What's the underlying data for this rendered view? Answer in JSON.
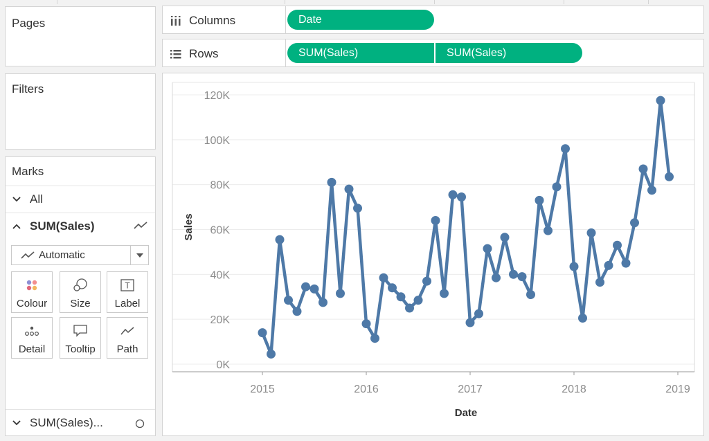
{
  "colors": {
    "pill": "#00b180",
    "line": "#4e79a7",
    "grid": "#ececec",
    "border": "#d4d4d4"
  },
  "pages": {
    "title": "Pages"
  },
  "filters": {
    "title": "Filters"
  },
  "shelves": {
    "columns": {
      "label": "Columns",
      "icon": "columns-icon",
      "pills": [
        "Date"
      ]
    },
    "rows": {
      "label": "Rows",
      "icon": "rows-icon",
      "pills": [
        "SUM(Sales)",
        "SUM(Sales)"
      ]
    }
  },
  "marks": {
    "title": "Marks",
    "all_label": "All",
    "sum_sales_label": "SUM(Sales)",
    "mark_type": "Automatic",
    "buttons": {
      "colour": "Colour",
      "size": "Size",
      "label": "Label",
      "detail": "Detail",
      "tooltip": "Tooltip",
      "path": "Path"
    },
    "bottom_label": "SUM(Sales)..."
  },
  "chart_data": {
    "type": "line",
    "xlabel": "Date",
    "ylabel": "Sales",
    "x_ticks": [
      "2015",
      "2016",
      "2017",
      "2018",
      "2019"
    ],
    "y_ticks": [
      "0K",
      "20K",
      "40K",
      "60K",
      "80K",
      "100K",
      "120K"
    ],
    "ylim": [
      0,
      120000
    ],
    "xlim": [
      "2014-09",
      "2019-02"
    ],
    "grid": true,
    "x": [
      "2015-01",
      "2015-02",
      "2015-03",
      "2015-04",
      "2015-05",
      "2015-06",
      "2015-07",
      "2015-08",
      "2015-09",
      "2015-10",
      "2015-11",
      "2015-12",
      "2016-01",
      "2016-02",
      "2016-03",
      "2016-04",
      "2016-05",
      "2016-06",
      "2016-07",
      "2016-08",
      "2016-09",
      "2016-10",
      "2016-11",
      "2016-12",
      "2017-01",
      "2017-02",
      "2017-03",
      "2017-04",
      "2017-05",
      "2017-06",
      "2017-07",
      "2017-08",
      "2017-09",
      "2017-10",
      "2017-11",
      "2017-12",
      "2018-01",
      "2018-02",
      "2018-03",
      "2018-04",
      "2018-05",
      "2018-06",
      "2018-07",
      "2018-08",
      "2018-09",
      "2018-10",
      "2018-11",
      "2018-12"
    ],
    "values": [
      14000,
      4500,
      55500,
      28500,
      23500,
      34500,
      33500,
      27500,
      81000,
      31500,
      78000,
      69500,
      18000,
      11500,
      38500,
      34000,
      30000,
      25000,
      28500,
      37000,
      64000,
      31500,
      75500,
      74500,
      18500,
      22500,
      51500,
      38500,
      56500,
      40000,
      39000,
      31000,
      73000,
      59500,
      79000,
      96000,
      43500,
      20500,
      58500,
      36500,
      44000,
      53000,
      45000,
      63000,
      87000,
      77500,
      117500,
      83500
    ]
  }
}
